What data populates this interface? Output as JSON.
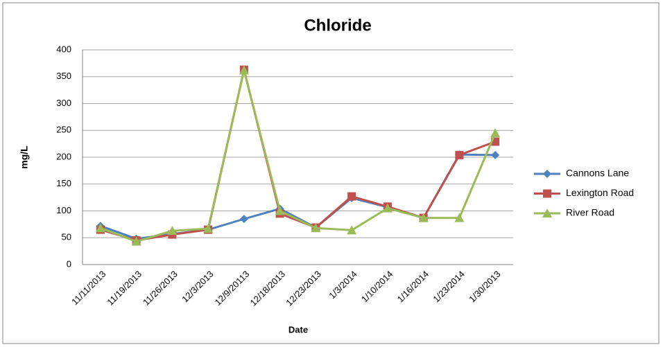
{
  "chart_data": {
    "type": "line",
    "title": "Chloride",
    "x_label": "Date",
    "y_label": "mg/L",
    "categories": [
      "11/11/2013",
      "11/19/2013",
      "11/26/2013",
      "12/3/2013",
      "12/9/20113",
      "12/18/2013",
      "12/23/2013",
      "1/3/2014",
      "1/10/2014",
      "1/16/2014",
      "1/23/2014",
      "1/30/2013"
    ],
    "series": [
      {
        "name": "Cannons Lane",
        "color": "#4f81bd",
        "marker": "diamond",
        "values": [
          72,
          48,
          57,
          65,
          85,
          104,
          69,
          124,
          107,
          87,
          205,
          204
        ]
      },
      {
        "name": "Lexington Road",
        "color": "#c0504d",
        "marker": "square",
        "values": [
          65,
          45,
          56,
          65,
          363,
          95,
          69,
          127,
          108,
          87,
          204,
          229
        ]
      },
      {
        "name": "River Road",
        "color": "#9bbb59",
        "marker": "triangle",
        "values": [
          68,
          43,
          63,
          67,
          362,
          100,
          68,
          64,
          105,
          87,
          87,
          245
        ]
      }
    ],
    "ylim": [
      0,
      400
    ],
    "yticks": [
      0,
      50,
      100,
      150,
      200,
      250,
      300,
      350,
      400
    ],
    "grid": true,
    "legend": "right"
  }
}
